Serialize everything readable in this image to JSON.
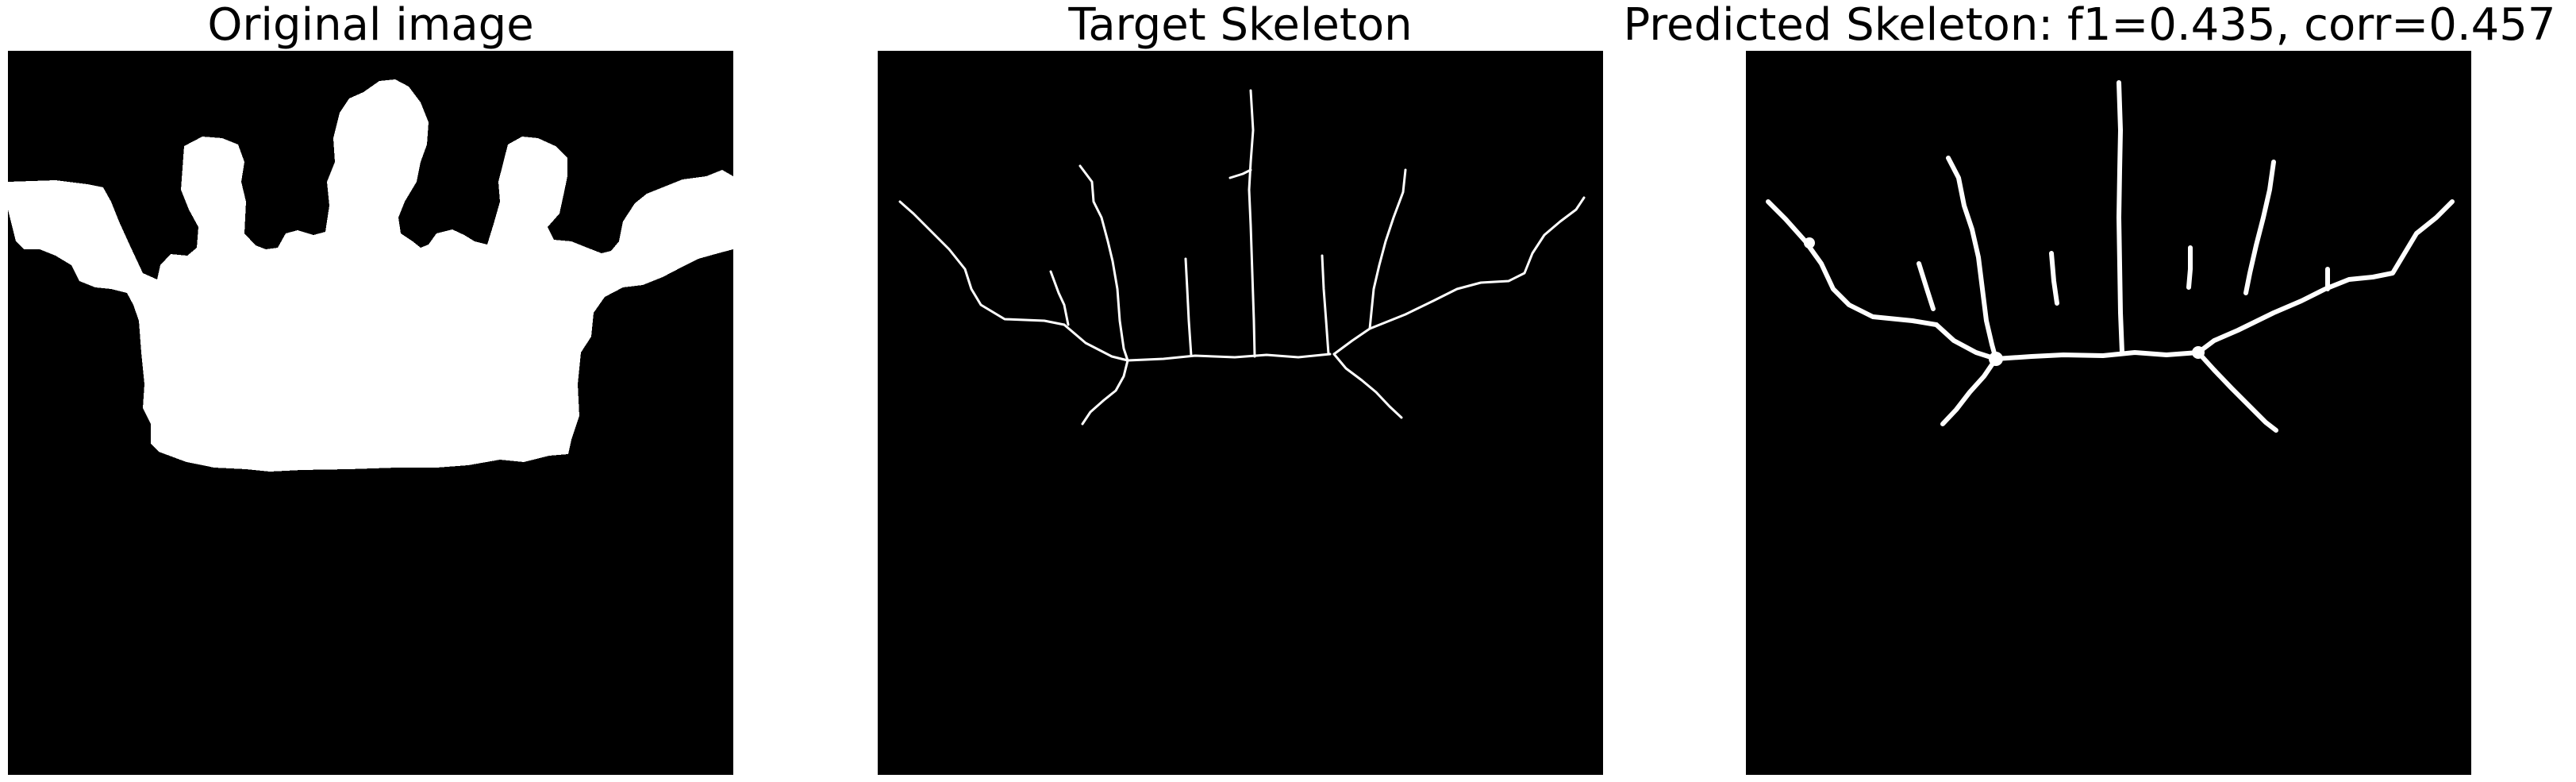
{
  "panels": {
    "original": {
      "title": "Original image"
    },
    "target": {
      "title": "Target Skeleton"
    },
    "predicted": {
      "title": "Predicted Skeleton: f1=0.435, corr=0.457"
    }
  },
  "colors": {
    "background": "#000000",
    "foreground": "#ffffff",
    "page": "#ffffff"
  }
}
